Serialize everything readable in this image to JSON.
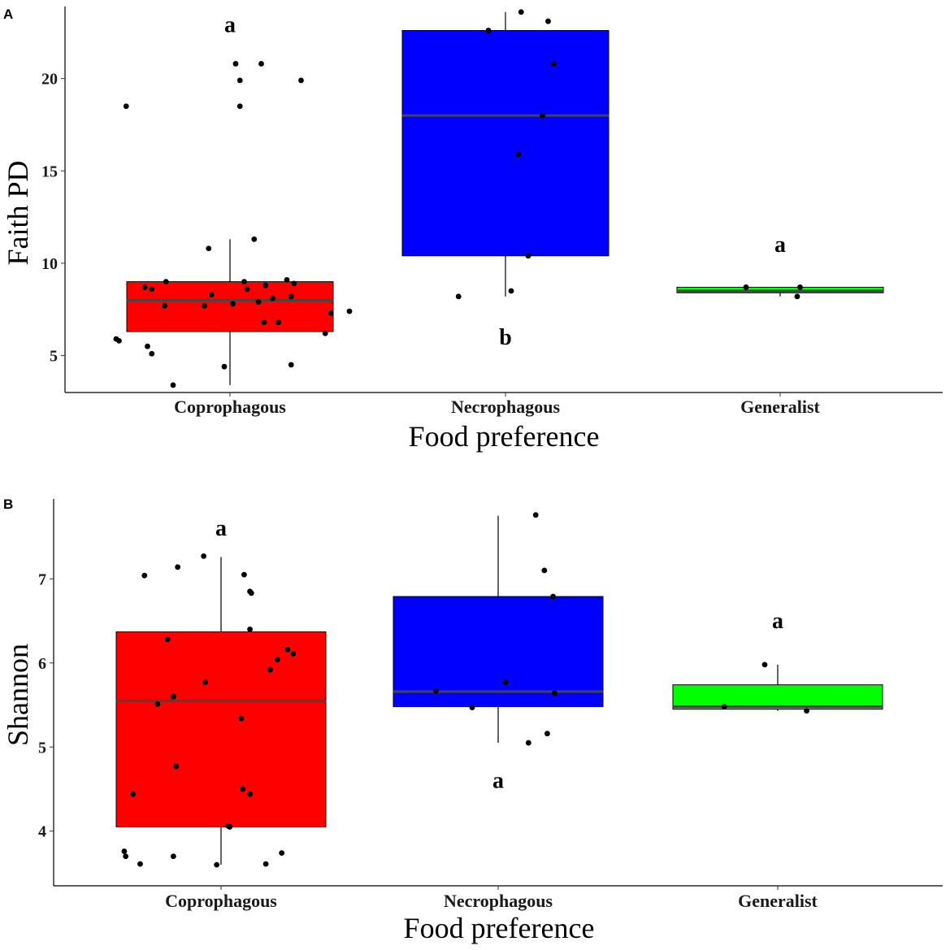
{
  "chart_data": [
    {
      "type": "boxplot",
      "panel_label": "A",
      "xlabel": "Food preference",
      "ylabel": "Faith PD",
      "ylim": [
        3.0,
        23.9
      ],
      "yticks": [
        5,
        10,
        15,
        20
      ],
      "categories": [
        "Coprophagous",
        "Necrophagous",
        "Generalist"
      ],
      "colors": [
        "#ff0000",
        "#0000ff",
        "#00ff00"
      ],
      "groups": [
        {
          "name": "Coprophagous",
          "whisker_low": 3.4,
          "q1": 6.3,
          "median": 8.0,
          "q3": 9.0,
          "whisker_high": 11.3,
          "letter": "a",
          "letter_y": 22.9,
          "points": [
            {
              "x": 0.22,
              "y": 20.8
            },
            {
              "x": 0.04,
              "y": 20.8
            },
            {
              "x": 0.07,
              "y": 19.9
            },
            {
              "x": 0.5,
              "y": 19.9
            },
            {
              "x": -0.73,
              "y": 18.5
            },
            {
              "x": 0.07,
              "y": 18.5
            },
            {
              "x": 0.17,
              "y": 11.3
            },
            {
              "x": -0.15,
              "y": 10.8
            },
            {
              "x": -0.45,
              "y": 9.0
            },
            {
              "x": 0.1,
              "y": 9.0
            },
            {
              "x": 0.4,
              "y": 9.1
            },
            {
              "x": 0.45,
              "y": 8.9
            },
            {
              "x": -0.6,
              "y": 8.7
            },
            {
              "x": -0.55,
              "y": 8.6
            },
            {
              "x": 0.25,
              "y": 8.8
            },
            {
              "x": 0.12,
              "y": 8.6
            },
            {
              "x": -0.13,
              "y": 8.3
            },
            {
              "x": 0.43,
              "y": 8.2
            },
            {
              "x": 0.3,
              "y": 8.1
            },
            {
              "x": 0.2,
              "y": 7.9
            },
            {
              "x": 0.02,
              "y": 7.8
            },
            {
              "x": -0.18,
              "y": 7.7
            },
            {
              "x": -0.46,
              "y": 7.7
            },
            {
              "x": 0.84,
              "y": 7.4
            },
            {
              "x": 0.71,
              "y": 7.3
            },
            {
              "x": 0.24,
              "y": 6.8
            },
            {
              "x": 0.34,
              "y": 6.8
            },
            {
              "x": 0.67,
              "y": 6.2
            },
            {
              "x": -0.8,
              "y": 5.9
            },
            {
              "x": -0.78,
              "y": 5.8
            },
            {
              "x": -0.58,
              "y": 5.5
            },
            {
              "x": -0.55,
              "y": 5.1
            },
            {
              "x": -0.04,
              "y": 4.4
            },
            {
              "x": 0.43,
              "y": 4.5
            },
            {
              "x": -0.4,
              "y": 3.4
            }
          ]
        },
        {
          "name": "Necrophagous",
          "whisker_low": 8.2,
          "q1": 10.4,
          "median": 18.0,
          "q3": 22.6,
          "whisker_high": 23.6,
          "letter": "b",
          "letter_y": 6.0,
          "points": [
            {
              "x": 0.11,
              "y": 23.6
            },
            {
              "x": 0.3,
              "y": 23.1
            },
            {
              "x": -0.12,
              "y": 22.6
            },
            {
              "x": 0.34,
              "y": 20.8
            },
            {
              "x": 0.26,
              "y": 18.0
            },
            {
              "x": 0.09,
              "y": 15.9
            },
            {
              "x": 0.16,
              "y": 10.4
            },
            {
              "x": 0.04,
              "y": 8.5
            },
            {
              "x": -0.33,
              "y": 8.2
            }
          ]
        },
        {
          "name": "Generalist",
          "whisker_low": 8.2,
          "q1": 8.4,
          "median": 8.5,
          "q3": 8.7,
          "whisker_high": 8.7,
          "letter": "a",
          "letter_y": 11.0,
          "points": [
            {
              "x": -0.24,
              "y": 8.7
            },
            {
              "x": 0.14,
              "y": 8.7
            },
            {
              "x": 0.12,
              "y": 8.2
            }
          ]
        }
      ]
    },
    {
      "type": "boxplot",
      "panel_label": "B",
      "xlabel": "Food preference",
      "ylabel": "Shannon",
      "ylim": [
        3.35,
        7.95
      ],
      "yticks": [
        4,
        5,
        6,
        7
      ],
      "categories": [
        "Coprophagous",
        "Necrophagous",
        "Generalist"
      ],
      "colors": [
        "#ff0000",
        "#0000ff",
        "#00ff00"
      ],
      "groups": [
        {
          "name": "Coprophagous",
          "whisker_low": 3.6,
          "q1": 4.05,
          "median": 5.55,
          "q3": 6.37,
          "whisker_high": 7.26,
          "letter": "a",
          "letter_y": 7.6,
          "points": [
            {
              "x": -0.12,
              "y": 7.27
            },
            {
              "x": -0.3,
              "y": 7.14
            },
            {
              "x": 0.16,
              "y": 7.05
            },
            {
              "x": -0.53,
              "y": 7.04
            },
            {
              "x": 0.2,
              "y": 6.85
            },
            {
              "x": 0.21,
              "y": 6.83
            },
            {
              "x": 0.2,
              "y": 6.4
            },
            {
              "x": -0.37,
              "y": 6.28
            },
            {
              "x": 0.46,
              "y": 6.16
            },
            {
              "x": 0.5,
              "y": 6.11
            },
            {
              "x": 0.39,
              "y": 6.04
            },
            {
              "x": 0.34,
              "y": 5.92
            },
            {
              "x": -0.11,
              "y": 5.77
            },
            {
              "x": -0.33,
              "y": 5.6
            },
            {
              "x": -0.44,
              "y": 5.51
            },
            {
              "x": 0.14,
              "y": 5.34
            },
            {
              "x": -0.31,
              "y": 4.77
            },
            {
              "x": 0.15,
              "y": 4.5
            },
            {
              "x": -0.61,
              "y": 4.44
            },
            {
              "x": 0.2,
              "y": 4.44
            },
            {
              "x": 0.05,
              "y": 4.06
            },
            {
              "x": 0.06,
              "y": 4.05
            },
            {
              "x": -0.67,
              "y": 3.76
            },
            {
              "x": 0.42,
              "y": 3.74
            },
            {
              "x": -0.66,
              "y": 3.7
            },
            {
              "x": -0.33,
              "y": 3.7
            },
            {
              "x": -0.56,
              "y": 3.61
            },
            {
              "x": -0.03,
              "y": 3.6
            },
            {
              "x": 0.31,
              "y": 3.61
            }
          ]
        },
        {
          "name": "Necrophagous",
          "whisker_low": 5.05,
          "q1": 5.48,
          "median": 5.66,
          "q3": 6.79,
          "whisker_high": 7.75,
          "letter": "a",
          "letter_y": 4.6,
          "points": [
            {
              "x": 0.26,
              "y": 7.76
            },
            {
              "x": 0.32,
              "y": 7.1
            },
            {
              "x": 0.38,
              "y": 6.79
            },
            {
              "x": 0.05,
              "y": 5.77
            },
            {
              "x": -0.43,
              "y": 5.67
            },
            {
              "x": 0.39,
              "y": 5.64
            },
            {
              "x": -0.18,
              "y": 5.47
            },
            {
              "x": 0.34,
              "y": 5.16
            },
            {
              "x": 0.21,
              "y": 5.05
            }
          ]
        },
        {
          "name": "Generalist",
          "whisker_low": 5.43,
          "q1": 5.45,
          "median": 5.48,
          "q3": 5.74,
          "whisker_high": 5.98,
          "letter": "a",
          "letter_y": 6.5,
          "points": [
            {
              "x": -0.37,
              "y": 5.48
            },
            {
              "x": -0.09,
              "y": 5.98
            },
            {
              "x": 0.2,
              "y": 5.43
            }
          ]
        }
      ]
    }
  ]
}
